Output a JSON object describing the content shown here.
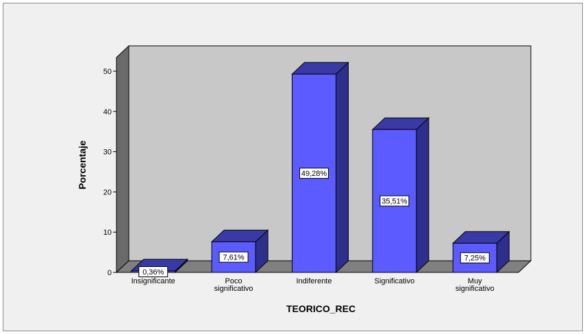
{
  "chart_data": {
    "type": "bar",
    "title": "",
    "xlabel": "TEORICO_REC",
    "ylabel": "Porcentaje",
    "categories": [
      [
        "Insignificante"
      ],
      [
        "Poco",
        "significativo"
      ],
      [
        "Indiferente"
      ],
      [
        "Significativo"
      ],
      [
        "Muy",
        "significativo"
      ]
    ],
    "values": [
      0.36,
      7.61,
      49.28,
      35.51,
      7.25
    ],
    "data_labels": [
      "0,36%",
      "7,61%",
      "49,28%",
      "35,51%",
      "7,25%"
    ],
    "yticks": [
      0,
      10,
      20,
      30,
      40,
      50
    ],
    "ylim": [
      0,
      53.4
    ],
    "grid": false,
    "three_d": true
  },
  "colors": {
    "bar_front": "#5b5bff",
    "bar_top": "#3a3aa6",
    "bar_side": "#2e2e8c",
    "plot_back": "#c8c8c8",
    "plot_floor": "#808080",
    "plot_wall": "#6a6a6a",
    "frame_bg": "#f0f0f0"
  }
}
